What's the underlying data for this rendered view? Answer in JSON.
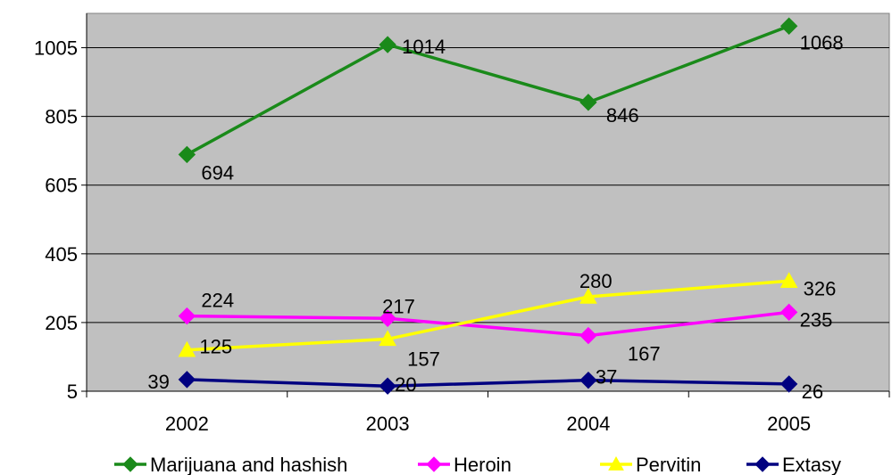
{
  "chart_data": {
    "type": "line",
    "title": "",
    "xlabel": "",
    "ylabel": "",
    "categories": [
      "2002",
      "2003",
      "2004",
      "2005"
    ],
    "ylim": [
      5,
      1105
    ],
    "y_ticks": [
      "5",
      "205",
      "405",
      "605",
      "805",
      "1005"
    ],
    "grid": "horizontal",
    "legend_position": "bottom",
    "plot_background": "#c0c0c0",
    "series": [
      {
        "name": "Marijuana and hashish",
        "color": "#1a8a1a",
        "marker": "diamond",
        "values": [
          694,
          1014,
          846,
          1068
        ],
        "labels": [
          "694",
          "1014",
          "846",
          "1068"
        ]
      },
      {
        "name": "Heroin",
        "color": "#ff00ff",
        "marker": "diamond",
        "values": [
          224,
          217,
          167,
          235
        ],
        "labels": [
          "224",
          "217",
          "167",
          "235"
        ]
      },
      {
        "name": "Pervitin",
        "color": "#ffff00",
        "marker": "triangle",
        "values": [
          125,
          157,
          280,
          326
        ],
        "labels": [
          "125",
          "157",
          "280",
          "326"
        ]
      },
      {
        "name": "Extasy",
        "color": "#000080",
        "marker": "diamond",
        "values": [
          39,
          20,
          37,
          26
        ],
        "labels": [
          "39",
          "20",
          "37",
          "26"
        ]
      }
    ]
  }
}
